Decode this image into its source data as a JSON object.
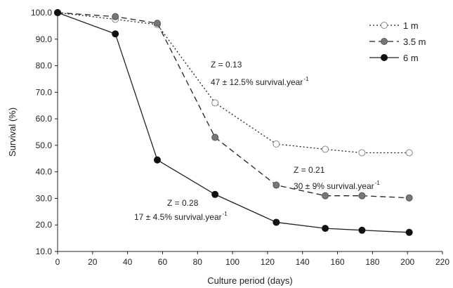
{
  "chart_data": {
    "type": "line",
    "xlabel": "Culture period (days)",
    "ylabel": "Survival (%)",
    "xlim": [
      0,
      220
    ],
    "ylim": [
      10,
      100
    ],
    "x_ticks": [
      "0",
      "20",
      "40",
      "60",
      "80",
      "100",
      "120",
      "140",
      "160",
      "180",
      "200",
      "220"
    ],
    "y_ticks": [
      "10.0",
      "20.0",
      "30.0",
      "40.0",
      "50.0",
      "60.0",
      "70.0",
      "80.0",
      "90.0",
      "100.0"
    ],
    "grid": false,
    "legend_position": "top-right",
    "series": [
      {
        "name": "1 m",
        "style": "dotted",
        "marker": "open-circle",
        "color": "#222222",
        "x": [
          0,
          33,
          57,
          90,
          125,
          153,
          174,
          201
        ],
        "y": [
          100.0,
          97.5,
          95.5,
          66.0,
          50.5,
          48.5,
          47.2,
          47.2
        ]
      },
      {
        "name": "3.5 m",
        "style": "dashed",
        "marker": "gray-circle",
        "color": "#777777",
        "x": [
          0,
          33,
          57,
          90,
          125,
          153,
          174,
          201
        ],
        "y": [
          100.0,
          98.5,
          96.0,
          53.0,
          35.0,
          31.0,
          31.0,
          30.2
        ]
      },
      {
        "name": "6 m",
        "style": "solid",
        "marker": "filled-circle",
        "color": "#111111",
        "x": [
          0,
          33,
          57,
          90,
          125,
          153,
          174,
          201
        ],
        "y": [
          100.0,
          92.0,
          44.5,
          31.5,
          21.0,
          18.7,
          18.0,
          17.2
        ]
      }
    ],
    "annotations": [
      {
        "line1": "Z = 0.13",
        "line2": "47 ± 12.5% survival.year",
        "sup": "-1"
      },
      {
        "line1": "Z = 0.21",
        "line2": "30 ± 9% survival.year",
        "sup": "-1"
      },
      {
        "line1": "Z = 0.28",
        "line2": "17 ± 4.5% survival.year",
        "sup": "-1"
      }
    ]
  }
}
